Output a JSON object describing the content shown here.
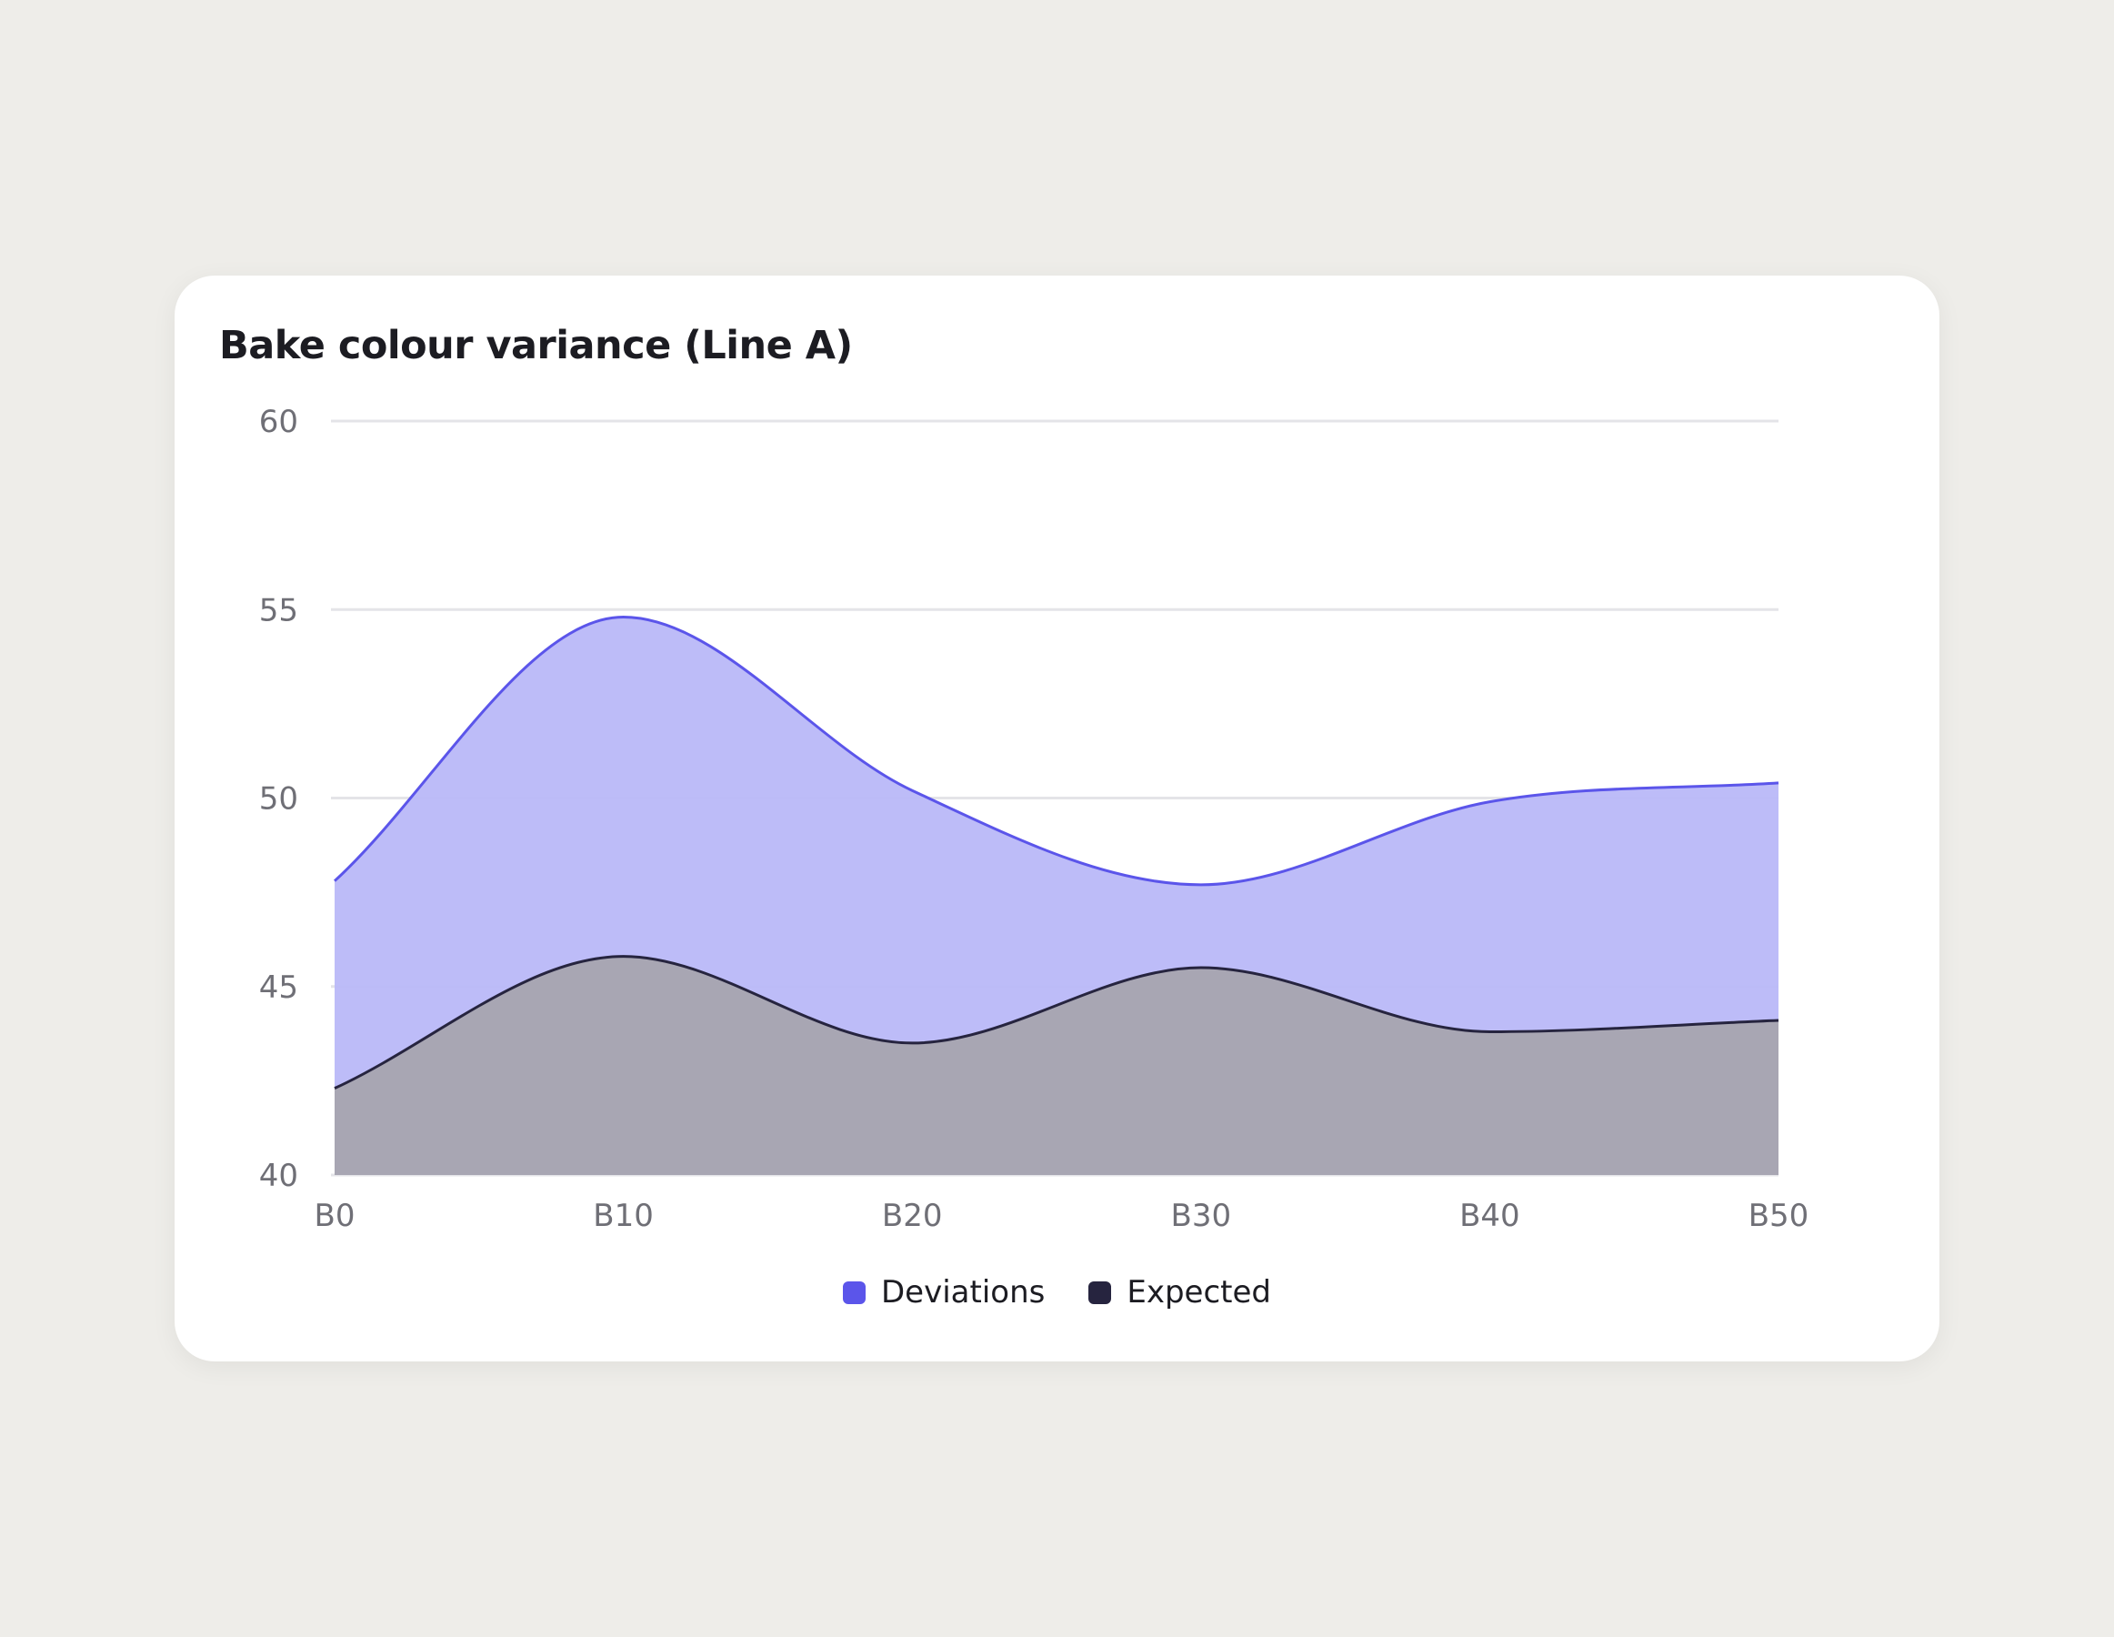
{
  "chart_data": {
    "type": "area",
    "title": "Bake colour variance (Line A)",
    "xlabel": "",
    "ylabel": "",
    "categories": [
      "B0",
      "B10",
      "B20",
      "B30",
      "B40",
      "B50"
    ],
    "x_tick_labels": [
      "B0",
      "B10",
      "B20",
      "B30",
      "B40",
      "B50"
    ],
    "y_ticks": [
      40,
      45,
      50,
      55,
      60
    ],
    "ylim": [
      40,
      60
    ],
    "grid": true,
    "legend_position": "bottom-center",
    "series": [
      {
        "name": "Deviations",
        "color": "#5b55ea",
        "fill": "#b9b8f8",
        "x": [
          0,
          10,
          20,
          30,
          40,
          50
        ],
        "values": [
          47.8,
          54.8,
          50.2,
          47.7,
          49.9,
          50.4
        ]
      },
      {
        "name": "Expected",
        "color": "#26243f",
        "fill": "#a7a5b1",
        "x": [
          0,
          10,
          20,
          30,
          40,
          50
        ],
        "values": [
          42.3,
          45.8,
          43.5,
          45.5,
          43.8,
          44.1
        ]
      }
    ]
  }
}
